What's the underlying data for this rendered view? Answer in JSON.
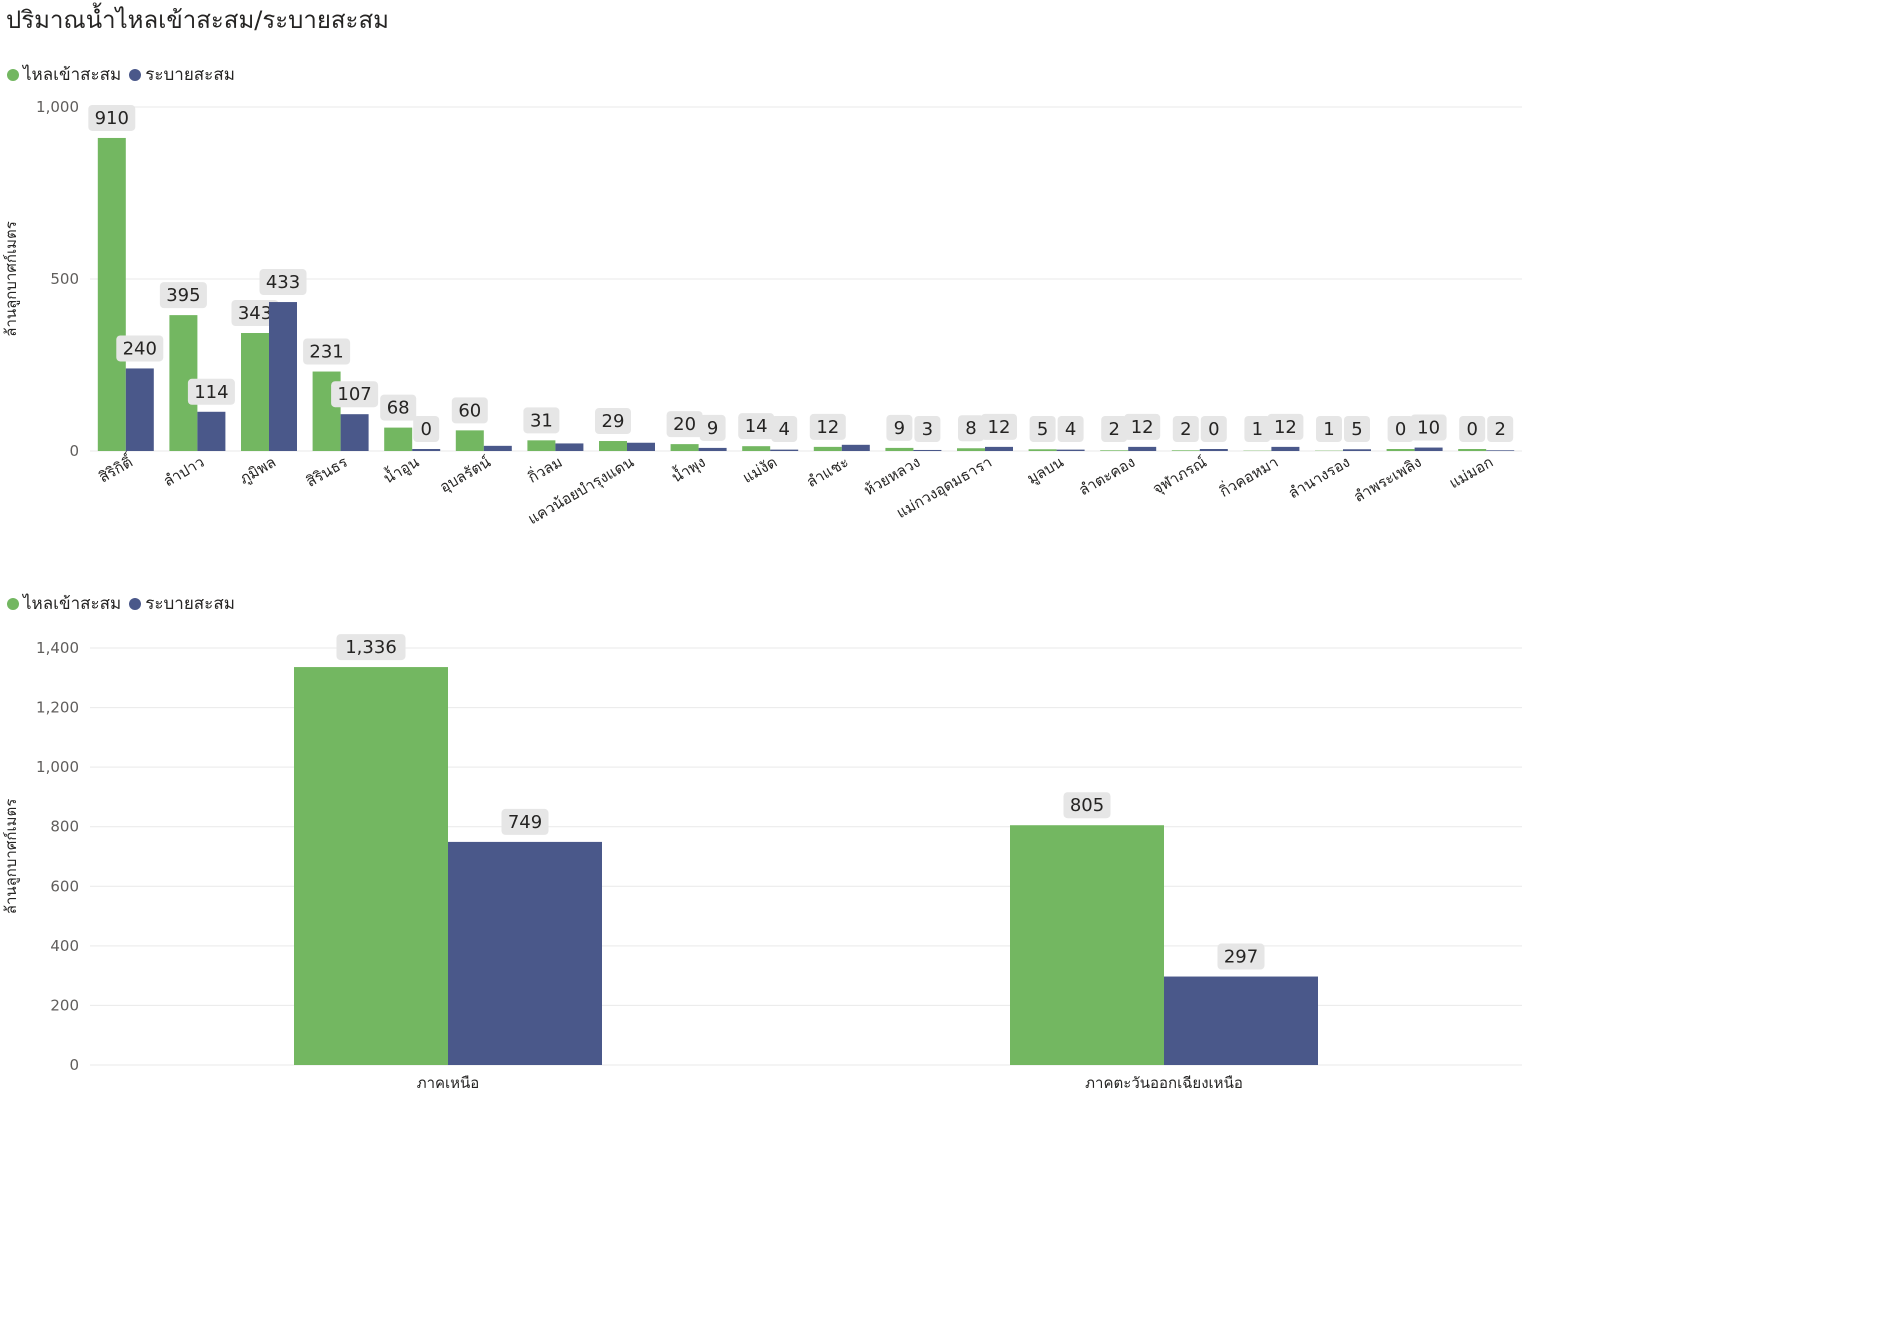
{
  "title": "ปริมาณน้ำไหลเข้าสะสม/ระบายสะสม",
  "colors": {
    "inflow": "#73b761",
    "outflow": "#4a588a"
  },
  "chart_data": [
    {
      "type": "bar",
      "legend": [
        "ไหลเข้าสะสม",
        "ระบายสะสม"
      ],
      "legend_position": "top-left",
      "ylabel": "ล้านลูกบาศก์เมตร",
      "ylim": [
        0,
        1000
      ],
      "yticks": [
        0,
        500,
        1000
      ],
      "ytick_labels": [
        "0",
        "500",
        "1,000"
      ],
      "grid": true,
      "categories": [
        "สิริกิติ์",
        "ลำปาว",
        "ภูมิพล",
        "สิรินธร",
        "น้ำอูน",
        "อุบลรัตน์",
        "กิ่วลม",
        "แควน้อยบำรุงแดน",
        "น้ำพุง",
        "แม่งัด",
        "ลำแชะ",
        "ห้วยหลวง",
        "แม่กวงอุดมธารา",
        "มูลบน",
        "ลำตะคอง",
        "จุฬาภรณ์",
        "กิ่วคอหมา",
        "ลำนางรอง",
        "ลำพระเพลิง",
        "แม่มอก"
      ],
      "series": [
        {
          "name": "ไหลเข้าสะสม",
          "values": [
            910,
            395,
            343,
            231,
            68,
            60,
            31,
            29,
            20,
            14,
            12,
            9,
            8,
            5,
            2,
            2,
            1,
            1,
            0,
            0
          ],
          "labels": [
            "910",
            "395",
            "343",
            "231",
            "68",
            "60",
            "31",
            "29",
            "20",
            "14",
            "12",
            "9",
            "8",
            "5",
            "2",
            "2",
            "1",
            "1",
            "0",
            "0"
          ]
        },
        {
          "name": "ระบายสะสม",
          "values": [
            240,
            114,
            433,
            107,
            0,
            15,
            22,
            24,
            9,
            4,
            18,
            3,
            12,
            4,
            12,
            0,
            12,
            5,
            10,
            2
          ],
          "labels": [
            "240",
            "114",
            "433",
            "107",
            "0",
            "",
            "",
            "",
            "9",
            "4",
            "",
            "3",
            "12",
            "4",
            "12",
            "0",
            "12",
            "5",
            "10",
            "2"
          ]
        }
      ]
    },
    {
      "type": "bar",
      "legend": [
        "ไหลเข้าสะสม",
        "ระบายสะสม"
      ],
      "legend_position": "top-left",
      "ylabel": "ล้านลูกบาศก์เมตร",
      "ylim": [
        0,
        1400
      ],
      "yticks": [
        0,
        200,
        400,
        600,
        800,
        1000,
        1200,
        1400
      ],
      "ytick_labels": [
        "0",
        "200",
        "400",
        "600",
        "800",
        "1,000",
        "1,200",
        "1,400"
      ],
      "grid": true,
      "categories": [
        "ภาคเหนือ",
        "ภาคตะวันออกเฉียงเหนือ"
      ],
      "series": [
        {
          "name": "ไหลเข้าสะสม",
          "values": [
            1336,
            805
          ],
          "labels": [
            "1,336",
            "805"
          ]
        },
        {
          "name": "ระบายสะสม",
          "values": [
            749,
            297
          ],
          "labels": [
            "749",
            "297"
          ]
        }
      ]
    }
  ]
}
